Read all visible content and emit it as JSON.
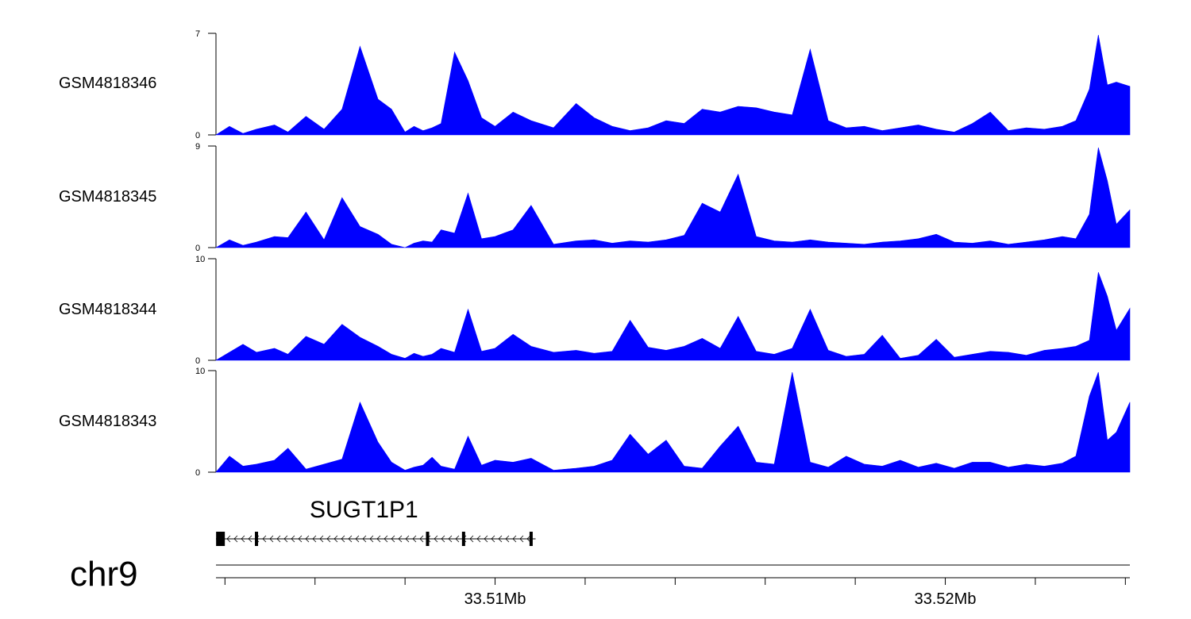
{
  "chart_data": {
    "type": "area",
    "title": "",
    "chromosome": "chr9",
    "x_unit": "Mb",
    "xlim": [
      33.5038,
      33.5241
    ],
    "color": "#0000ff",
    "x_tick_labels": [
      {
        "pos": 33.51,
        "label": "33.51Mb"
      },
      {
        "pos": 33.52,
        "label": "33.52Mb"
      }
    ],
    "x_minor_ticks": [
      33.504,
      33.506,
      33.508,
      33.51,
      33.512,
      33.514,
      33.516,
      33.518,
      33.52,
      33.522,
      33.524
    ],
    "x": [
      33.5038,
      33.5041,
      33.5044,
      33.5047,
      33.5051,
      33.5054,
      33.5058,
      33.5062,
      33.5066,
      33.507,
      33.5074,
      33.5077,
      33.508,
      33.5082,
      33.5084,
      33.5086,
      33.5088,
      33.5091,
      33.5094,
      33.5097,
      33.51,
      33.5104,
      33.5108,
      33.5113,
      33.5118,
      33.5122,
      33.5126,
      33.513,
      33.5134,
      33.5138,
      33.5142,
      33.5146,
      33.515,
      33.5154,
      33.5158,
      33.5162,
      33.5166,
      33.517,
      33.5174,
      33.5178,
      33.5182,
      33.5186,
      33.519,
      33.5194,
      33.5198,
      33.5202,
      33.5206,
      33.521,
      33.5214,
      33.5218,
      33.5222,
      33.5226,
      33.5229,
      33.5232,
      33.5234,
      33.5236,
      33.5238,
      33.5241
    ],
    "series": [
      {
        "name": "GSM4818346",
        "ylim": [
          0,
          7
        ],
        "values": [
          0,
          0.6,
          0.1,
          0.4,
          0.7,
          0.2,
          1.3,
          0.4,
          1.8,
          6.2,
          2.5,
          1.8,
          0.2,
          0.6,
          0.3,
          0.5,
          0.8,
          5.8,
          3.8,
          1.2,
          0.6,
          1.6,
          1.0,
          0.5,
          2.2,
          1.2,
          0.6,
          0.3,
          0.5,
          1.0,
          0.8,
          1.8,
          1.6,
          2.0,
          1.9,
          1.6,
          1.4,
          6.0,
          1.0,
          0.5,
          0.6,
          0.3,
          0.5,
          0.7,
          0.4,
          0.2,
          0.8,
          1.6,
          0.3,
          0.5,
          0.4,
          0.6,
          1.0,
          3.2,
          7.0,
          3.5,
          3.7,
          3.4
        ]
      },
      {
        "name": "GSM4818345",
        "ylim": [
          0,
          9
        ],
        "values": [
          0,
          0.7,
          0.2,
          0.5,
          1.0,
          0.9,
          3.2,
          0.7,
          4.5,
          1.9,
          1.2,
          0.3,
          0.0,
          0.4,
          0.6,
          0.5,
          1.6,
          1.3,
          4.9,
          0.8,
          1.0,
          1.6,
          3.8,
          0.3,
          0.6,
          0.7,
          0.4,
          0.6,
          0.5,
          0.7,
          1.1,
          4.0,
          3.2,
          6.6,
          1.0,
          0.6,
          0.5,
          0.7,
          0.5,
          0.4,
          0.3,
          0.5,
          0.6,
          0.8,
          1.2,
          0.5,
          0.4,
          0.6,
          0.3,
          0.5,
          0.7,
          1.0,
          0.8,
          3.0,
          9.0,
          6.0,
          2.1,
          3.4
        ]
      },
      {
        "name": "GSM4818344",
        "ylim": [
          0,
          10
        ],
        "values": [
          0,
          0.8,
          1.6,
          0.8,
          1.2,
          0.6,
          2.4,
          1.6,
          3.6,
          2.3,
          1.4,
          0.6,
          0.2,
          0.7,
          0.4,
          0.6,
          1.2,
          0.8,
          5.1,
          0.9,
          1.2,
          2.6,
          1.4,
          0.8,
          1.0,
          0.7,
          0.9,
          4.0,
          1.3,
          1.0,
          1.4,
          2.2,
          1.2,
          4.4,
          0.9,
          0.6,
          1.2,
          5.1,
          1.0,
          0.4,
          0.6,
          2.5,
          0.2,
          0.5,
          2.1,
          0.3,
          0.6,
          0.9,
          0.8,
          0.5,
          1.0,
          1.2,
          1.4,
          2.0,
          8.8,
          6.4,
          3.0,
          5.2
        ]
      },
      {
        "name": "GSM4818343",
        "ylim": [
          0,
          10
        ],
        "values": [
          0,
          1.6,
          0.6,
          0.8,
          1.2,
          2.4,
          0.3,
          0.8,
          1.3,
          7.0,
          3.0,
          1.0,
          0.2,
          0.5,
          0.7,
          1.5,
          0.6,
          0.3,
          3.6,
          0.7,
          1.2,
          1.0,
          1.4,
          0.2,
          0.4,
          0.6,
          1.2,
          3.8,
          1.8,
          3.2,
          0.6,
          0.4,
          2.6,
          4.6,
          1.0,
          0.8,
          10.0,
          1.0,
          0.5,
          1.6,
          0.8,
          0.6,
          1.2,
          0.5,
          0.9,
          0.4,
          1.0,
          1.0,
          0.5,
          0.8,
          0.6,
          0.9,
          1.6,
          7.6,
          10.0,
          3.2,
          4.0,
          7.0
        ]
      }
    ],
    "gene": {
      "name": "SUGT1P1",
      "strand": "-",
      "start": 33.5038,
      "end": 33.5109,
      "exons": [
        33.5039,
        33.5047,
        33.5085,
        33.5093,
        33.5108
      ]
    }
  }
}
